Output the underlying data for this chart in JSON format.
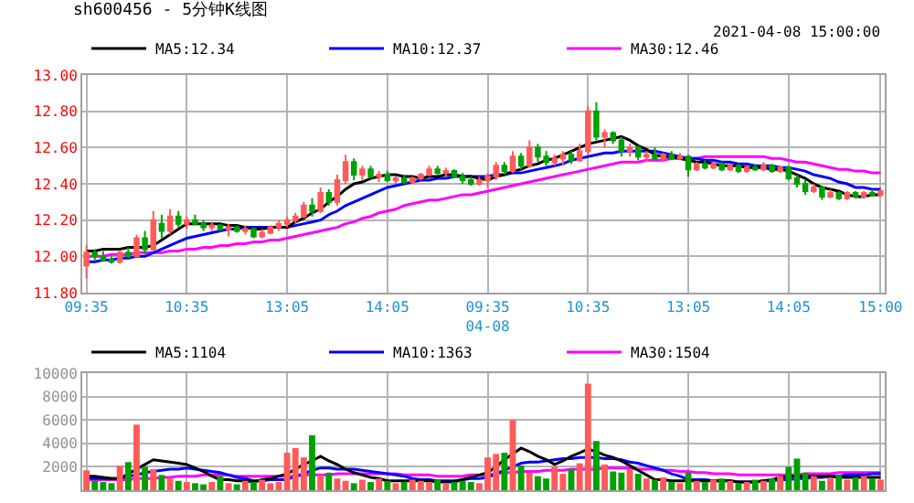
{
  "chart_data": [
    {
      "type": "candlestick",
      "title": "sh600456 - 5分钟K线图",
      "annotations": [
        "2021-04-08 15:00:00"
      ],
      "grid": true,
      "legend": "top",
      "categories": [
        "09:35",
        null,
        null,
        null,
        null,
        null,
        null,
        null,
        null,
        null,
        null,
        null,
        "10:35",
        null,
        null,
        null,
        null,
        null,
        null,
        null,
        null,
        null,
        null,
        null,
        "13:05",
        null,
        null,
        null,
        null,
        null,
        null,
        null,
        null,
        null,
        null,
        null,
        "14:05",
        null,
        null,
        null,
        null,
        null,
        null,
        null,
        null,
        null,
        null,
        null,
        "09:35\n04-08",
        null,
        null,
        null,
        null,
        null,
        null,
        null,
        null,
        null,
        null,
        null,
        "10:35",
        null,
        null,
        null,
        null,
        null,
        null,
        null,
        null,
        null,
        null,
        null,
        "13:05",
        null,
        null,
        null,
        null,
        null,
        null,
        null,
        null,
        null,
        null,
        null,
        "14:05",
        null,
        null,
        null,
        null,
        null,
        null,
        null,
        null,
        null,
        null,
        "15:00"
      ],
      "ohlc": [
        [
          11.95,
          12.06,
          11.88,
          12.02
        ],
        [
          12.02,
          12.04,
          11.98,
          12.0
        ],
        [
          12.0,
          12.03,
          11.97,
          11.98
        ],
        [
          11.98,
          12.0,
          11.96,
          11.97
        ],
        [
          11.97,
          12.03,
          11.96,
          12.02
        ],
        [
          12.02,
          12.05,
          11.99,
          12.0
        ],
        [
          12.0,
          12.12,
          12.0,
          12.1
        ],
        [
          12.1,
          12.14,
          12.01,
          12.04
        ],
        [
          12.04,
          12.25,
          12.03,
          12.2
        ],
        [
          12.18,
          12.23,
          12.1,
          12.14
        ],
        [
          12.14,
          12.26,
          12.12,
          12.22
        ],
        [
          12.22,
          12.25,
          12.16,
          12.18
        ],
        [
          12.18,
          12.22,
          12.15,
          12.2
        ],
        [
          12.2,
          12.23,
          12.17,
          12.18
        ],
        [
          12.18,
          12.2,
          12.14,
          12.16
        ],
        [
          12.16,
          12.19,
          12.14,
          12.17
        ],
        [
          12.17,
          12.18,
          12.14,
          12.15
        ],
        [
          12.15,
          12.18,
          12.11,
          12.16
        ],
        [
          12.16,
          12.17,
          12.13,
          12.14
        ],
        [
          12.14,
          12.17,
          12.12,
          12.15
        ],
        [
          12.15,
          12.16,
          12.1,
          12.11
        ],
        [
          12.11,
          12.15,
          12.1,
          12.13
        ],
        [
          12.13,
          12.17,
          12.12,
          12.16
        ],
        [
          12.16,
          12.2,
          12.14,
          12.18
        ],
        [
          12.18,
          12.22,
          12.16,
          12.2
        ],
        [
          12.2,
          12.24,
          12.18,
          12.22
        ],
        [
          12.22,
          12.3,
          12.21,
          12.28
        ],
        [
          12.28,
          12.32,
          12.22,
          12.25
        ],
        [
          12.25,
          12.38,
          12.24,
          12.35
        ],
        [
          12.35,
          12.37,
          12.28,
          12.3
        ],
        [
          12.3,
          12.45,
          12.28,
          12.42
        ],
        [
          12.42,
          12.56,
          12.4,
          12.52
        ],
        [
          12.52,
          12.54,
          12.42,
          12.45
        ],
        [
          12.45,
          12.5,
          12.42,
          12.48
        ],
        [
          12.48,
          12.5,
          12.43,
          12.44
        ],
        [
          12.44,
          12.47,
          12.41,
          12.45
        ],
        [
          12.45,
          12.47,
          12.41,
          12.42
        ],
        [
          12.42,
          12.44,
          12.4,
          12.43
        ],
        [
          12.43,
          12.45,
          12.4,
          12.41
        ],
        [
          12.41,
          12.44,
          12.4,
          12.43
        ],
        [
          12.43,
          12.46,
          12.42,
          12.45
        ],
        [
          12.45,
          12.5,
          12.44,
          12.48
        ],
        [
          12.48,
          12.5,
          12.45,
          12.46
        ],
        [
          12.46,
          12.49,
          12.44,
          12.47
        ],
        [
          12.47,
          12.48,
          12.43,
          12.44
        ],
        [
          12.44,
          12.46,
          12.4,
          12.42
        ],
        [
          12.42,
          12.44,
          12.39,
          12.4
        ],
        [
          12.4,
          12.44,
          12.39,
          12.42
        ],
        [
          12.42,
          12.46,
          12.38,
          12.44
        ],
        [
          12.44,
          12.52,
          12.42,
          12.5
        ],
        [
          12.5,
          12.52,
          12.45,
          12.47
        ],
        [
          12.47,
          12.58,
          12.46,
          12.55
        ],
        [
          12.55,
          12.57,
          12.48,
          12.5
        ],
        [
          12.5,
          12.64,
          12.49,
          12.6
        ],
        [
          12.6,
          12.62,
          12.52,
          12.55
        ],
        [
          12.55,
          12.58,
          12.5,
          12.52
        ],
        [
          12.52,
          12.56,
          12.5,
          12.54
        ],
        [
          12.54,
          12.58,
          12.5,
          12.56
        ],
        [
          12.56,
          12.58,
          12.51,
          12.53
        ],
        [
          12.53,
          12.62,
          12.52,
          12.58
        ],
        [
          12.58,
          12.83,
          12.56,
          12.8
        ],
        [
          12.8,
          12.85,
          12.64,
          12.66
        ],
        [
          12.66,
          12.7,
          12.6,
          12.68
        ],
        [
          12.68,
          12.69,
          12.62,
          12.64
        ],
        [
          12.64,
          12.66,
          12.55,
          12.58
        ],
        [
          12.58,
          12.62,
          12.55,
          12.6
        ],
        [
          12.6,
          12.61,
          12.53,
          12.55
        ],
        [
          12.55,
          12.58,
          12.52,
          12.56
        ],
        [
          12.56,
          12.6,
          12.53,
          12.54
        ],
        [
          12.54,
          12.57,
          12.52,
          12.56
        ],
        [
          12.56,
          12.58,
          12.53,
          12.54
        ],
        [
          12.54,
          12.57,
          12.53,
          12.55
        ],
        [
          12.55,
          12.56,
          12.44,
          12.48
        ],
        [
          12.48,
          12.52,
          12.47,
          12.51
        ],
        [
          12.51,
          12.53,
          12.48,
          12.49
        ],
        [
          12.49,
          12.52,
          12.48,
          12.51
        ],
        [
          12.51,
          12.52,
          12.47,
          12.48
        ],
        [
          12.48,
          12.51,
          12.47,
          12.5
        ],
        [
          12.5,
          12.51,
          12.46,
          12.47
        ],
        [
          12.47,
          12.5,
          12.46,
          12.49
        ],
        [
          12.49,
          12.51,
          12.47,
          12.48
        ],
        [
          12.48,
          12.52,
          12.47,
          12.5
        ],
        [
          12.5,
          12.51,
          12.46,
          12.47
        ],
        [
          12.47,
          12.5,
          12.46,
          12.49
        ],
        [
          12.49,
          12.5,
          12.42,
          12.43
        ],
        [
          12.43,
          12.45,
          12.38,
          12.4
        ],
        [
          12.4,
          12.42,
          12.34,
          12.36
        ],
        [
          12.36,
          12.4,
          12.35,
          12.38
        ],
        [
          12.38,
          12.39,
          12.31,
          12.33
        ],
        [
          12.33,
          12.37,
          12.32,
          12.35
        ],
        [
          12.35,
          12.36,
          12.31,
          12.32
        ],
        [
          12.32,
          12.36,
          12.31,
          12.35
        ],
        [
          12.35,
          12.36,
          12.32,
          12.33
        ],
        [
          12.33,
          12.36,
          12.32,
          12.35
        ],
        [
          12.35,
          12.37,
          12.33,
          12.34
        ],
        [
          12.34,
          12.37,
          12.33,
          12.36
        ]
      ],
      "colors": [
        "#ff5a5a",
        "#00a000",
        "#00a000",
        "#00a000",
        "#ff5a5a",
        "#00a000",
        "#ff5a5a",
        "#00a000",
        "#ff5a5a",
        "#00a000",
        "#ff5a5a",
        "#00a000",
        "#ff5a5a",
        "#00a000",
        "#00a000",
        "#ff5a5a",
        "#00a000",
        "#ff5a5a",
        "#00a000",
        "#ff5a5a",
        "#00a000",
        "#ff5a5a",
        "#ff5a5a",
        "#ff5a5a",
        "#ff5a5a",
        "#ff5a5a",
        "#ff5a5a",
        "#00a000",
        "#ff5a5a",
        "#00a000",
        "#ff5a5a",
        "#ff5a5a",
        "#00a000",
        "#ff5a5a",
        "#00a000",
        "#ff5a5a",
        "#00a000",
        "#ff5a5a",
        "#00a000",
        "#ff5a5a",
        "#ff5a5a",
        "#ff5a5a",
        "#00a000",
        "#ff5a5a",
        "#00a000",
        "#00a000",
        "#00a000",
        "#ff5a5a",
        "#ff5a5a",
        "#ff5a5a",
        "#00a000",
        "#ff5a5a",
        "#00a000",
        "#ff5a5a",
        "#00a000",
        "#00a000",
        "#ff5a5a",
        "#ff5a5a",
        "#00a000",
        "#ff5a5a",
        "#ff5a5a",
        "#00a000",
        "#ff5a5a",
        "#00a000",
        "#00a000",
        "#ff5a5a",
        "#00a000",
        "#ff5a5a",
        "#00a000",
        "#ff5a5a",
        "#00a000",
        "#ff5a5a",
        "#00a000",
        "#ff5a5a",
        "#00a000",
        "#ff5a5a",
        "#00a000",
        "#ff5a5a",
        "#00a000",
        "#ff5a5a",
        "#00a000",
        "#ff5a5a",
        "#00a000",
        "#ff5a5a",
        "#00a000",
        "#00a000",
        "#00a000",
        "#ff5a5a",
        "#00a000",
        "#ff5a5a",
        "#00a000",
        "#ff5a5a",
        "#00a000",
        "#ff5a5a",
        "#00a000",
        "#ff5a5a"
      ],
      "series": [
        {
          "type": "line",
          "name": "MA5:12.34",
          "color": "#000000",
          "values": [
            12.03,
            12.03,
            12.04,
            12.04,
            12.04,
            12.05,
            12.05,
            12.05,
            12.06,
            12.09,
            12.12,
            12.15,
            12.18,
            12.18,
            12.18,
            12.18,
            12.18,
            12.17,
            12.17,
            12.16,
            12.15,
            12.15,
            12.16,
            12.16,
            12.16,
            12.19,
            12.21,
            12.24,
            12.26,
            12.3,
            12.33,
            12.37,
            12.4,
            12.41,
            12.43,
            12.44,
            12.45,
            12.45,
            12.44,
            12.44,
            12.43,
            12.44,
            12.44,
            12.45,
            12.45,
            12.44,
            12.44,
            12.43,
            12.42,
            12.44,
            12.45,
            12.47,
            12.48,
            12.5,
            12.51,
            12.53,
            12.54,
            12.56,
            12.58,
            12.6,
            12.62,
            12.63,
            12.64,
            12.65,
            12.66,
            12.64,
            12.61,
            12.59,
            12.56,
            12.55,
            12.55,
            12.54,
            12.53,
            12.52,
            12.52,
            12.51,
            12.5,
            12.5,
            12.5,
            12.49,
            12.49,
            12.49,
            12.48,
            12.48,
            12.47,
            12.45,
            12.43,
            12.4,
            12.38,
            12.37,
            12.36,
            12.34,
            12.33,
            12.33,
            12.34,
            12.34
          ]
        },
        {
          "type": "line",
          "name": "MA10:12.37",
          "color": "#0000ff",
          "values": [
            11.97,
            11.97,
            11.98,
            11.98,
            11.99,
            11.99,
            12.0,
            12.0,
            12.02,
            12.04,
            12.06,
            12.08,
            12.1,
            12.11,
            12.12,
            12.13,
            12.14,
            12.15,
            12.15,
            12.16,
            12.16,
            12.16,
            12.16,
            12.16,
            12.16,
            12.17,
            12.18,
            12.19,
            12.2,
            12.23,
            12.25,
            12.28,
            12.3,
            12.32,
            12.34,
            12.36,
            12.38,
            12.39,
            12.4,
            12.41,
            12.42,
            12.42,
            12.43,
            12.43,
            12.44,
            12.44,
            12.44,
            12.44,
            12.44,
            12.45,
            12.45,
            12.46,
            12.46,
            12.47,
            12.48,
            12.49,
            12.5,
            12.51,
            12.53,
            12.54,
            12.55,
            12.56,
            12.57,
            12.57,
            12.58,
            12.58,
            12.58,
            12.58,
            12.58,
            12.57,
            12.56,
            12.55,
            12.54,
            12.54,
            12.53,
            12.53,
            12.52,
            12.52,
            12.51,
            12.51,
            12.5,
            12.5,
            12.5,
            12.49,
            12.49,
            12.48,
            12.47,
            12.45,
            12.44,
            12.43,
            12.41,
            12.4,
            12.38,
            12.38,
            12.37,
            12.37
          ]
        },
        {
          "type": "line",
          "name": "MA30:12.46",
          "color": "#ff00ff",
          "values": [
            12.0,
            12.0,
            12.0,
            12.01,
            12.01,
            12.01,
            12.02,
            12.02,
            12.02,
            12.02,
            12.03,
            12.03,
            12.04,
            12.04,
            12.05,
            12.05,
            12.06,
            12.06,
            12.07,
            12.07,
            12.08,
            12.08,
            12.09,
            12.09,
            12.1,
            12.11,
            12.12,
            12.13,
            12.14,
            12.15,
            12.16,
            12.18,
            12.19,
            12.21,
            12.22,
            12.24,
            12.25,
            12.26,
            12.28,
            12.29,
            12.3,
            12.31,
            12.31,
            12.32,
            12.33,
            12.34,
            12.34,
            12.35,
            12.36,
            12.37,
            12.38,
            12.39,
            12.4,
            12.41,
            12.42,
            12.43,
            12.44,
            12.45,
            12.46,
            12.47,
            12.48,
            12.49,
            12.5,
            12.51,
            12.52,
            12.52,
            12.52,
            12.53,
            12.53,
            12.53,
            12.54,
            12.54,
            12.54,
            12.54,
            12.55,
            12.55,
            12.55,
            12.55,
            12.55,
            12.55,
            12.55,
            12.55,
            12.54,
            12.54,
            12.53,
            12.52,
            12.52,
            12.51,
            12.5,
            12.49,
            12.48,
            12.48,
            12.47,
            12.47,
            12.46,
            12.46
          ]
        }
      ],
      "ylim": [
        11.8,
        13.0
      ],
      "yticks": [
        {
          "value": 11.8,
          "label": "11.80"
        },
        {
          "value": 12.0,
          "label": "12.00"
        },
        {
          "value": 12.2,
          "label": "12.20"
        },
        {
          "value": 12.4,
          "label": "12.40"
        },
        {
          "value": 12.6,
          "label": "12.60"
        },
        {
          "value": 12.8,
          "label": "12.80"
        },
        {
          "value": 13.0,
          "label": "13.00"
        }
      ]
    },
    {
      "type": "bar",
      "grid": true,
      "legend": "top",
      "tick_labels": "y",
      "categories": [
        null,
        null,
        null,
        null,
        null,
        null,
        null,
        null,
        null,
        null,
        null,
        null,
        null,
        null,
        null,
        null,
        null,
        null,
        null,
        null,
        null,
        null,
        null,
        null,
        null,
        null,
        null,
        null,
        null,
        null,
        null,
        null,
        null,
        null,
        null,
        null,
        null,
        null,
        null,
        null,
        null,
        null,
        null,
        null,
        null,
        null,
        null,
        null,
        null,
        null,
        null,
        null,
        null,
        null,
        null,
        null,
        null,
        null,
        null,
        null,
        null,
        null,
        null,
        null,
        null,
        null,
        null,
        null,
        null,
        null,
        null,
        null,
        null,
        null,
        null,
        null,
        null,
        null,
        null,
        null,
        null,
        null,
        null,
        null,
        null,
        null,
        null,
        null,
        null,
        null,
        null,
        null,
        null,
        null,
        null,
        null
      ],
      "values": [
        1700,
        800,
        700,
        600,
        2100,
        2400,
        5600,
        2000,
        1800,
        1300,
        1000,
        800,
        700,
        600,
        500,
        700,
        1200,
        600,
        500,
        800,
        700,
        900,
        600,
        700,
        3200,
        3600,
        2800,
        4700,
        1300,
        1500,
        1000,
        800,
        600,
        900,
        700,
        1000,
        800,
        600,
        700,
        900,
        800,
        700,
        900,
        600,
        700,
        800,
        700,
        600,
        2800,
        3100,
        3200,
        6000,
        2100,
        1500,
        1200,
        1000,
        2000,
        1400,
        1800,
        2300,
        9100,
        4200,
        2200,
        1600,
        1500,
        1800,
        1400,
        1000,
        900,
        1100,
        700,
        600,
        1500,
        800,
        700,
        900,
        1000,
        800,
        600,
        700,
        900,
        800,
        1000,
        1200,
        2000,
        2700,
        1500,
        1200,
        800,
        1000,
        1300,
        900,
        1100,
        1200,
        1000,
        900
      ],
      "colors": [
        "#ff5a5a",
        "#00a000",
        "#00a000",
        "#00a000",
        "#ff5a5a",
        "#00a000",
        "#ff5a5a",
        "#00a000",
        "#ff5a5a",
        "#00a000",
        "#ff5a5a",
        "#00a000",
        "#ff5a5a",
        "#00a000",
        "#00a000",
        "#ff5a5a",
        "#00a000",
        "#ff5a5a",
        "#00a000",
        "#ff5a5a",
        "#00a000",
        "#ff5a5a",
        "#ff5a5a",
        "#ff5a5a",
        "#ff5a5a",
        "#ff5a5a",
        "#ff5a5a",
        "#00a000",
        "#ff5a5a",
        "#00a000",
        "#ff5a5a",
        "#ff5a5a",
        "#00a000",
        "#ff5a5a",
        "#00a000",
        "#ff5a5a",
        "#00a000",
        "#ff5a5a",
        "#00a000",
        "#ff5a5a",
        "#ff5a5a",
        "#ff5a5a",
        "#00a000",
        "#ff5a5a",
        "#00a000",
        "#00a000",
        "#00a000",
        "#ff5a5a",
        "#ff5a5a",
        "#ff5a5a",
        "#00a000",
        "#ff5a5a",
        "#00a000",
        "#ff5a5a",
        "#00a000",
        "#00a000",
        "#ff5a5a",
        "#ff5a5a",
        "#00a000",
        "#ff5a5a",
        "#ff5a5a",
        "#00a000",
        "#ff5a5a",
        "#00a000",
        "#00a000",
        "#ff5a5a",
        "#00a000",
        "#ff5a5a",
        "#00a000",
        "#ff5a5a",
        "#00a000",
        "#ff5a5a",
        "#00a000",
        "#ff5a5a",
        "#00a000",
        "#ff5a5a",
        "#00a000",
        "#ff5a5a",
        "#00a000",
        "#ff5a5a",
        "#00a000",
        "#ff5a5a",
        "#00a000",
        "#ff5a5a",
        "#00a000",
        "#00a000",
        "#00a000",
        "#ff5a5a",
        "#00a000",
        "#ff5a5a",
        "#00a000",
        "#ff5a5a",
        "#00a000",
        "#ff5a5a",
        "#00a000",
        "#ff5a5a"
      ],
      "series": [
        {
          "type": "line",
          "name": "MA5:1104",
          "color": "#000000",
          "values": [
            1200,
            1200,
            1100,
            1000,
            1000,
            1400,
            1800,
            2200,
            2600,
            2500,
            2400,
            2300,
            2200,
            1900,
            1600,
            1200,
            900,
            900,
            800,
            800,
            700,
            900,
            1000,
            1200,
            1400,
            1800,
            2200,
            2500,
            2900,
            2500,
            2200,
            1800,
            1500,
            1300,
            1100,
            1000,
            800,
            800,
            800,
            800,
            800,
            800,
            700,
            700,
            700,
            900,
            1100,
            1300,
            1500,
            2000,
            2600,
            3100,
            3600,
            3300,
            2900,
            2600,
            2200,
            2500,
            2900,
            3200,
            3500,
            3300,
            3000,
            2800,
            2500,
            2100,
            1700,
            1300,
            900,
            900,
            800,
            800,
            800,
            800,
            800,
            800,
            800,
            800,
            700,
            700,
            700,
            800,
            900,
            1100,
            1200,
            1200,
            1200,
            1200,
            1200,
            1200,
            1100,
            1100,
            1100,
            1100,
            1100,
            1100
          ]
        },
        {
          "type": "line",
          "name": "MA10:1363",
          "color": "#0000ff",
          "values": [
            1000,
            1000,
            1000,
            1000,
            1000,
            1200,
            1300,
            1500,
            1600,
            1700,
            1800,
            1800,
            1900,
            1800,
            1700,
            1600,
            1500,
            1300,
            1100,
            1000,
            800,
            800,
            900,
            900,
            900,
            1200,
            1400,
            1700,
            1900,
            1900,
            1800,
            1800,
            1800,
            1700,
            1600,
            1500,
            1400,
            1300,
            1200,
            1000,
            900,
            900,
            800,
            800,
            800,
            900,
            1000,
            1000,
            1100,
            1400,
            1700,
            2000,
            2300,
            2400,
            2400,
            2500,
            2600,
            2700,
            2700,
            2800,
            2800,
            2800,
            2700,
            2700,
            2600,
            2400,
            2300,
            2100,
            1900,
            1700,
            1400,
            1200,
            900,
            900,
            900,
            800,
            800,
            800,
            700,
            700,
            700,
            800,
            800,
            900,
            900,
            1000,
            1000,
            1100,
            1100,
            1200,
            1200,
            1300,
            1300,
            1300,
            1400,
            1400
          ]
        },
        {
          "type": "line",
          "name": "MA30:1504",
          "color": "#ff00ff",
          "values": [
            900,
            900,
            900,
            900,
            900,
            900,
            1000,
            1000,
            1000,
            1100,
            1100,
            1200,
            1200,
            1200,
            1300,
            1300,
            1300,
            1300,
            1200,
            1200,
            1200,
            1200,
            1200,
            1200,
            1200,
            1200,
            1300,
            1300,
            1300,
            1300,
            1400,
            1400,
            1400,
            1400,
            1400,
            1400,
            1400,
            1400,
            1300,
            1300,
            1300,
            1300,
            1200,
            1200,
            1200,
            1200,
            1300,
            1300,
            1300,
            1400,
            1500,
            1500,
            1600,
            1600,
            1600,
            1700,
            1700,
            1700,
            1800,
            1800,
            1800,
            1800,
            1900,
            1900,
            1900,
            1900,
            1800,
            1800,
            1800,
            1700,
            1700,
            1600,
            1600,
            1500,
            1500,
            1400,
            1400,
            1400,
            1300,
            1300,
            1300,
            1300,
            1300,
            1300,
            1300,
            1300,
            1400,
            1400,
            1400,
            1400,
            1500,
            1500,
            1500,
            1500,
            1500,
            1500
          ]
        }
      ],
      "ylim": [
        0,
        10000
      ],
      "yticks": [
        {
          "value": 0,
          "label": null
        },
        2000,
        4000,
        6000,
        8000,
        10000
      ]
    }
  ]
}
